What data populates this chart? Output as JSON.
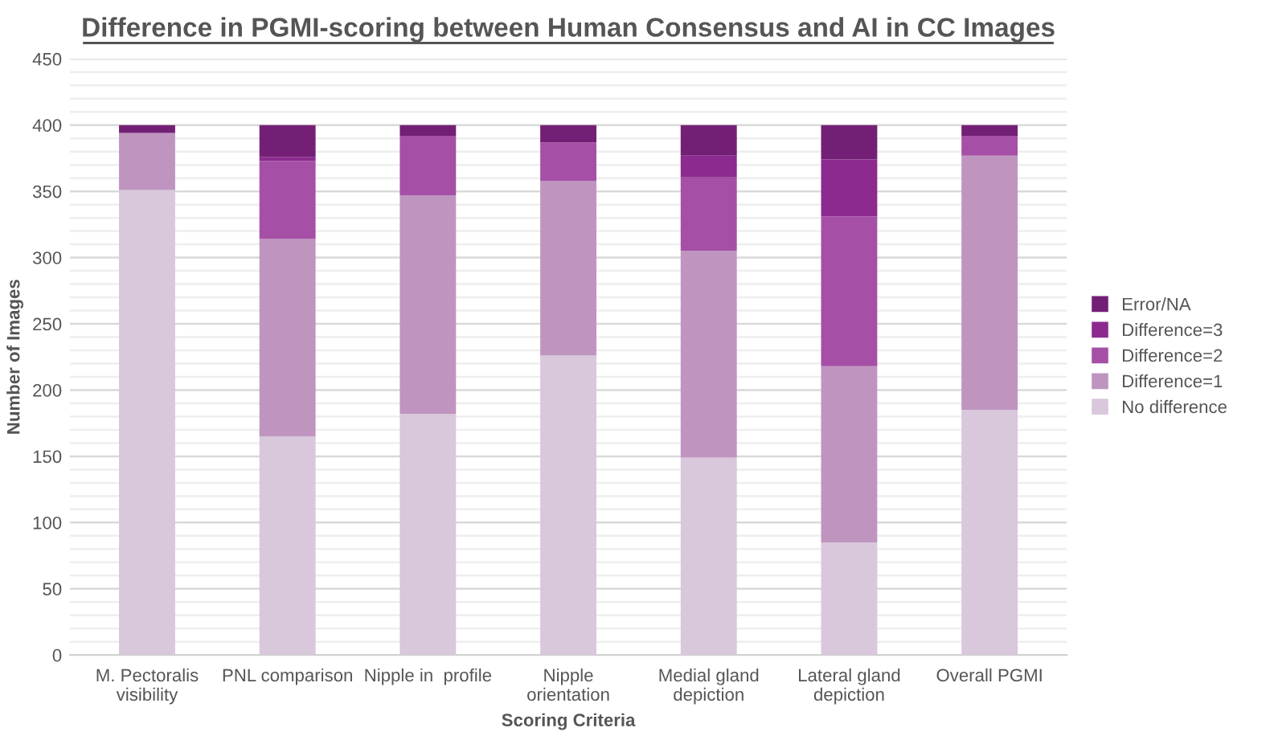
{
  "chart_data": {
    "type": "bar",
    "title": "Difference in PGMI-scoring between Human Consensus and AI in CC Images",
    "xlabel": "Scoring Criteria",
    "ylabel": "Number of Images",
    "categories": [
      "M. Pectoralis visibility",
      "PNL comparison",
      "Nipple in  profile",
      "Nipple orientation",
      "Medial gland depiction",
      "Lateral gland depiction",
      "Overall PGMI"
    ],
    "stacked": true,
    "legend": "right",
    "grid": "y",
    "ylim": [
      0,
      450
    ],
    "yticks": [
      0,
      {
        "value": 10,
        "label": null
      },
      {
        "value": 20,
        "label": null
      },
      {
        "value": 30,
        "label": null
      },
      {
        "value": 40,
        "label": null
      },
      50,
      {
        "value": 60,
        "label": null
      },
      {
        "value": 70,
        "label": null
      },
      {
        "value": 80,
        "label": null
      },
      {
        "value": 90,
        "label": null
      },
      100,
      {
        "value": 110,
        "label": null
      },
      {
        "value": 120,
        "label": null
      },
      {
        "value": 130,
        "label": null
      },
      {
        "value": 140,
        "label": null
      },
      150,
      {
        "value": 160,
        "label": null
      },
      {
        "value": 170,
        "label": null
      },
      {
        "value": 180,
        "label": null
      },
      {
        "value": 190,
        "label": null
      },
      200,
      {
        "value": 210,
        "label": null
      },
      {
        "value": 220,
        "label": null
      },
      {
        "value": 230,
        "label": null
      },
      {
        "value": 240,
        "label": null
      },
      250,
      {
        "value": 260,
        "label": null
      },
      {
        "value": 270,
        "label": null
      },
      {
        "value": 280,
        "label": null
      },
      {
        "value": 290,
        "label": null
      },
      300,
      {
        "value": 310,
        "label": null
      },
      {
        "value": 320,
        "label": null
      },
      {
        "value": 330,
        "label": null
      },
      {
        "value": 340,
        "label": null
      },
      350,
      {
        "value": 360,
        "label": null
      },
      {
        "value": 370,
        "label": null
      },
      {
        "value": 380,
        "label": null
      },
      {
        "value": 390,
        "label": null
      },
      400,
      {
        "value": 410,
        "label": null
      },
      {
        "value": 420,
        "label": null
      },
      {
        "value": 430,
        "label": null
      },
      {
        "value": 440,
        "label": null
      },
      450
    ],
    "series": [
      {
        "name": "No difference",
        "color": "#d9c7dc",
        "values": [
          351,
          165,
          182,
          226,
          149,
          85,
          185
        ]
      },
      {
        "name": "Difference=1",
        "color": "#bf95c0",
        "values": [
          43,
          149,
          165,
          132,
          156,
          133,
          192
        ]
      },
      {
        "name": "Difference=2",
        "color": "#a550a6",
        "values": [
          0,
          59,
          45,
          29,
          56,
          113,
          15
        ]
      },
      {
        "name": "Difference=3",
        "color": "#8c2a8f",
        "values": [
          0,
          3,
          0,
          0,
          16,
          43,
          0
        ]
      },
      {
        "name": "Error/NA",
        "color": "#741f76",
        "values": [
          6,
          24,
          8,
          13,
          23,
          26,
          8
        ]
      }
    ]
  }
}
